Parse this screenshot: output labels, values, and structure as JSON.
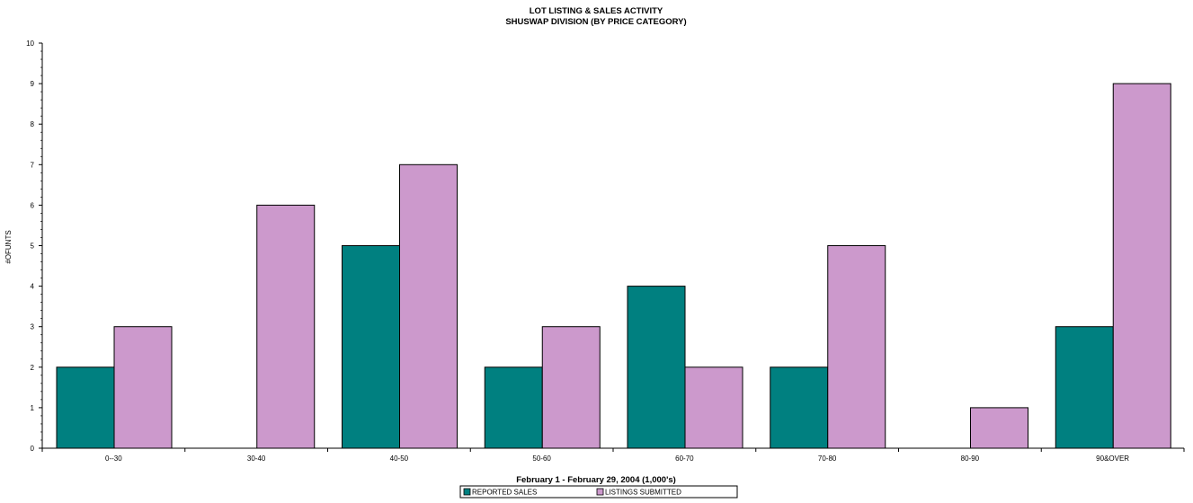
{
  "chart_data": {
    "type": "bar",
    "title": "LOT LISTING & SALES ACTIVITY",
    "subtitle": "SHUSWAP DIVISION (BY PRICE CATEGORY)",
    "xlabel": "February 1 - February 29, 2004 (1,000's)",
    "ylabel": "#OFUNTS",
    "ylim": [
      0,
      10
    ],
    "yticks": [
      0,
      1,
      2,
      3,
      4,
      5,
      6,
      7,
      8,
      9,
      10
    ],
    "categories": [
      "0--30",
      "30-40",
      "40-50",
      "50-60",
      "60-70",
      "70-80",
      "80-90",
      "90&OVER"
    ],
    "series": [
      {
        "name": "REPORTED SALES",
        "color": "#008080",
        "values": [
          2,
          0,
          5,
          2,
          4,
          2,
          0,
          3
        ]
      },
      {
        "name": "LISTINGS SUBMITTED",
        "color": "#CC99CC",
        "values": [
          3,
          6,
          7,
          3,
          2,
          5,
          1,
          9
        ]
      }
    ],
    "grid": false,
    "legend": "bottom-center"
  }
}
